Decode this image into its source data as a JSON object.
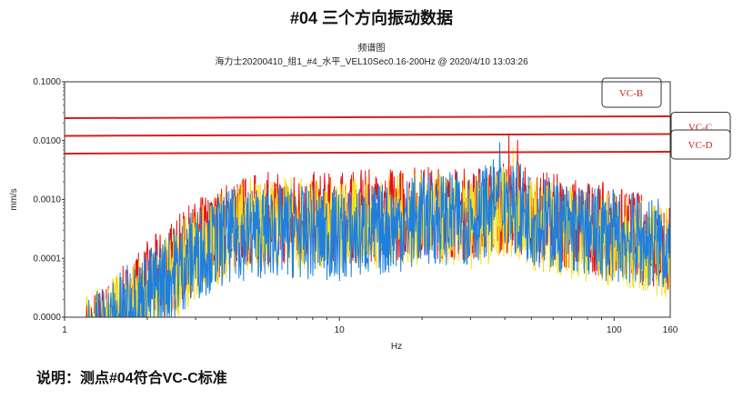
{
  "header": {
    "title": "#04 三个方向振动数据",
    "chart_kind": "频谱图",
    "chart_subtitle": "海力士20200410_组1_#4_水平_VEL10Sec0.16-200Hz @ 2020/4/10 13:03:26"
  },
  "note": "说明：测点#04符合VC-C标准",
  "chart_data": {
    "type": "line",
    "xlabel": "Hz",
    "ylabel": "mm/s",
    "xscale": "log",
    "yscale": "log",
    "xlim": [
      1,
      160
    ],
    "ylim": [
      1e-05,
      0.1
    ],
    "xticks": [
      {
        "v": 1,
        "label": "1"
      },
      {
        "v": 10,
        "label": "10"
      },
      {
        "v": 100,
        "label": "100"
      },
      {
        "v": 160,
        "label": "160"
      }
    ],
    "yticks": [
      {
        "v": 0.1,
        "label": "0.1000"
      },
      {
        "v": 0.01,
        "label": "0.0100"
      },
      {
        "v": 0.001,
        "label": "0.0010"
      },
      {
        "v": 0.0001,
        "label": "0.0001"
      },
      {
        "v": 1e-05,
        "label": "0.0000"
      }
    ],
    "criteria": [
      {
        "name": "VC-B",
        "value": 0.025,
        "color": "#d42020"
      },
      {
        "name": "VC-C",
        "value": 0.0125,
        "color": "#d42020"
      },
      {
        "name": "VC-D",
        "value": 0.00625,
        "color": "#d42020"
      }
    ],
    "envelope_hz": [
      1.2,
      1.5,
      2,
      3,
      4,
      5,
      7,
      10,
      15,
      20,
      30,
      40,
      50,
      70,
      100,
      130,
      160
    ],
    "series": [
      {
        "name": "red",
        "color": "#e81010",
        "envelope": [
          1e-05,
          2e-05,
          8e-05,
          0.0004,
          0.0009,
          0.0012,
          0.0012,
          0.0012,
          0.0014,
          0.0016,
          0.0014,
          0.002,
          0.0014,
          0.001,
          0.0007,
          0.0005,
          0.0004
        ]
      },
      {
        "name": "yellow",
        "color": "#f5e020",
        "envelope": [
          1e-05,
          2e-05,
          5e-05,
          0.0003,
          0.0008,
          0.001,
          0.001,
          0.0009,
          0.0011,
          0.0012,
          0.001,
          0.0015,
          0.001,
          0.0007,
          0.0005,
          0.0004,
          0.0003
        ]
      },
      {
        "name": "blue",
        "color": "#1e7fe0",
        "envelope": [
          1e-05,
          2e-05,
          6e-05,
          0.0003,
          0.0006,
          0.0007,
          0.0007,
          0.0006,
          0.0008,
          0.0012,
          0.0012,
          0.0025,
          0.0012,
          0.0008,
          0.0006,
          0.0005,
          0.0004
        ]
      }
    ]
  }
}
